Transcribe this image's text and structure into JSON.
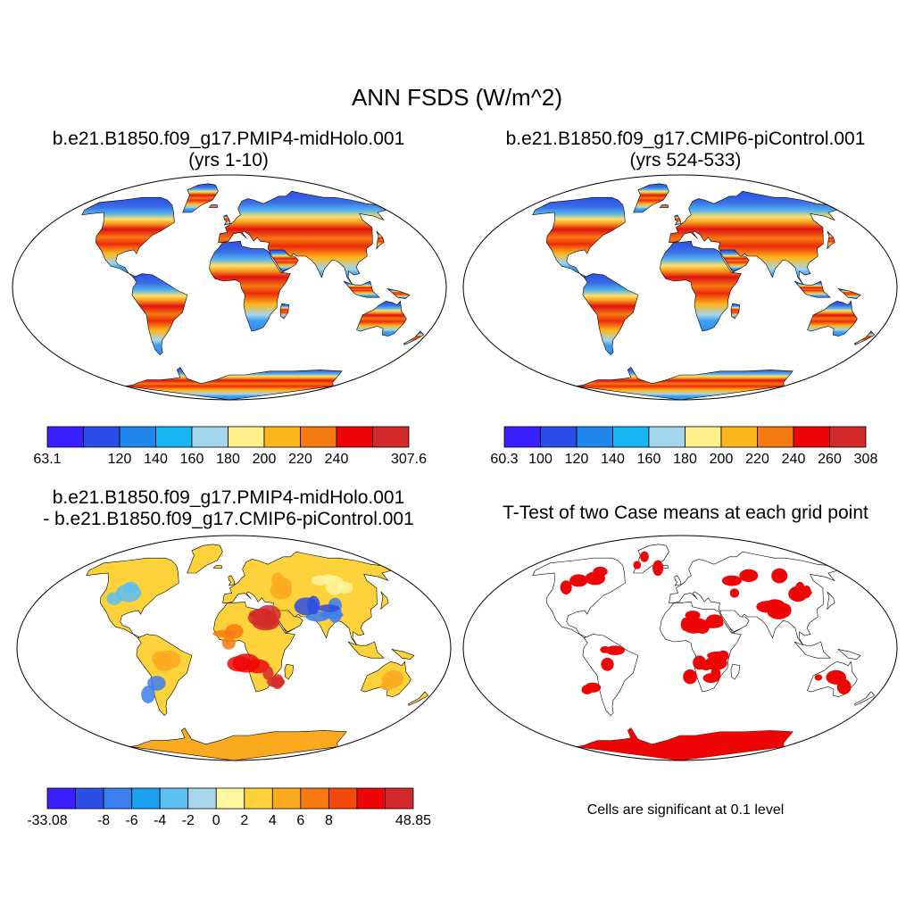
{
  "figure": {
    "title": "ANN FSDS (W/m^2)"
  },
  "panels": [
    {
      "id": "case1",
      "title_line1": "b.e21.B1850.f09_g17.PMIP4-midHolo.001",
      "title_line2": "(yrs 1-10)",
      "map_kind": "field",
      "colorbar": {
        "colors": [
          "#3a1fff",
          "#2b4ee6",
          "#1f86ee",
          "#15b6f2",
          "#a3d5ee",
          "#fff08a",
          "#fbb81a",
          "#f77a10",
          "#ee0606",
          "#d22a2a"
        ],
        "labels": [
          "63.1",
          "",
          "120",
          "140",
          "160",
          "180",
          "200",
          "220",
          "240",
          "",
          "307.6"
        ]
      }
    },
    {
      "id": "case2",
      "title_line1": "b.e21.B1850.f09_g17.CMIP6-piControl.001",
      "title_line2": "(yrs 524-533)",
      "map_kind": "field",
      "colorbar": {
        "colors": [
          "#3a1fff",
          "#2b4ee6",
          "#1f86ee",
          "#15b6f2",
          "#a3d5ee",
          "#fff08a",
          "#fbb81a",
          "#f77a10",
          "#ee0606",
          "#d22a2a"
        ],
        "labels": [
          "60.3",
          "100",
          "120",
          "140",
          "160",
          "180",
          "200",
          "220",
          "240",
          "260",
          "308"
        ]
      }
    },
    {
      "id": "diff",
      "title_line1": "b.e21.B1850.f09_g17.PMIP4-midHolo.001",
      "title_line2": "- b.e21.B1850.f09_g17.CMIP6-piControl.001",
      "map_kind": "difference",
      "colorbar": {
        "colors": [
          "#3a1fff",
          "#2b4ee6",
          "#3b7ff0",
          "#1aa0f0",
          "#5cc0f2",
          "#a8d8ee",
          "#fff6a0",
          "#fdd23a",
          "#fba91f",
          "#f77a10",
          "#f34a0a",
          "#ee0606",
          "#d22a2a"
        ],
        "labels": [
          "-33.08",
          "",
          "-8",
          "-6",
          "-4",
          "-2",
          "0",
          "2",
          "4",
          "6",
          "8",
          "",
          "",
          "48.85"
        ]
      }
    },
    {
      "id": "ttest",
      "title_line1": "T-Test of two Case means at each grid point",
      "map_kind": "significance",
      "note": "Cells are significant at 0.1 level"
    }
  ],
  "colors": {
    "significant": "#ee0606",
    "coast": "#000000",
    "frame": "#000000"
  }
}
